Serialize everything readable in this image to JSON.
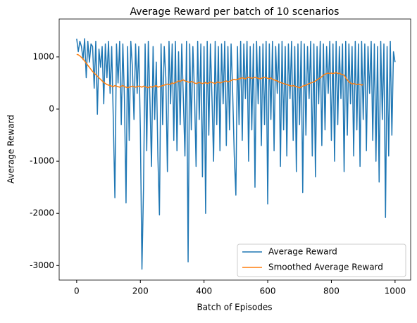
{
  "chart_data": {
    "type": "line",
    "title": "Average Reward per batch of 10 scenarios",
    "x_label": "Batch of Episodes",
    "y_label": "Average Reward",
    "x": [
      0,
      5,
      10,
      15,
      20,
      25,
      30,
      35,
      40,
      45,
      50,
      55,
      60,
      65,
      70,
      75,
      80,
      85,
      90,
      95,
      100,
      105,
      110,
      115,
      120,
      125,
      130,
      135,
      140,
      145,
      150,
      155,
      160,
      165,
      170,
      175,
      180,
      185,
      190,
      195,
      200,
      205,
      210,
      215,
      220,
      225,
      230,
      235,
      240,
      245,
      250,
      255,
      260,
      265,
      270,
      275,
      280,
      285,
      290,
      295,
      300,
      305,
      310,
      315,
      320,
      325,
      330,
      335,
      340,
      345,
      350,
      355,
      360,
      365,
      370,
      375,
      380,
      385,
      390,
      395,
      400,
      405,
      410,
      415,
      420,
      425,
      430,
      435,
      440,
      445,
      450,
      455,
      460,
      465,
      470,
      475,
      480,
      485,
      490,
      495,
      500,
      505,
      510,
      515,
      520,
      525,
      530,
      535,
      540,
      545,
      550,
      555,
      560,
      565,
      570,
      575,
      580,
      585,
      590,
      595,
      600,
      605,
      610,
      615,
      620,
      625,
      630,
      635,
      640,
      645,
      650,
      655,
      660,
      665,
      670,
      675,
      680,
      685,
      690,
      695,
      700,
      705,
      710,
      715,
      720,
      725,
      730,
      735,
      740,
      745,
      750,
      755,
      760,
      765,
      770,
      775,
      780,
      785,
      790,
      795,
      800,
      805,
      810,
      815,
      820,
      825,
      830,
      835,
      840,
      845,
      850,
      855,
      860,
      865,
      870,
      875,
      880,
      885,
      890,
      895,
      900,
      905,
      910,
      915,
      920,
      925,
      930,
      935,
      940,
      945,
      950,
      955,
      960,
      965,
      970,
      975,
      980,
      985,
      990,
      995,
      1000
    ],
    "series": [
      {
        "name": "Average Reward",
        "color": "#1f77b4",
        "values": [
          1350,
          1100,
          1300,
          1200,
          950,
          1350,
          600,
          1300,
          900,
          1250,
          1200,
          400,
          1300,
          -100,
          1150,
          800,
          1200,
          100,
          1250,
          600,
          1300,
          300,
          1200,
          -200,
          -1700,
          1250,
          500,
          1300,
          -300,
          1250,
          200,
          -1800,
          1200,
          -600,
          1300,
          800,
          -200,
          1250,
          300,
          1200,
          -400,
          -3070,
          -1500,
          1250,
          -800,
          1300,
          200,
          -1100,
          1200,
          -200,
          900,
          -900,
          -2030,
          1250,
          -300,
          1200,
          600,
          -1200,
          1300,
          100,
          1250,
          -600,
          1300,
          -800,
          1100,
          -300,
          1250,
          200,
          -900,
          1300,
          -2930,
          1250,
          -400,
          1200,
          300,
          -1100,
          1300,
          -200,
          1250,
          -1300,
          1200,
          -2000,
          1300,
          -500,
          1250,
          200,
          -1000,
          1300,
          -300,
          1200,
          -800,
          1250,
          100,
          1300,
          -700,
          1200,
          -400,
          1250,
          300,
          -900,
          -1650,
          1200,
          -300,
          1300,
          -600,
          1250,
          200,
          1300,
          -1000,
          1200,
          -400,
          1250,
          -1500,
          1300,
          100,
          1200,
          -700,
          1250,
          -300,
          1300,
          -1820,
          1250,
          -200,
          1300,
          -800,
          1200,
          300,
          1250,
          -1100,
          1300,
          -400,
          1200,
          -900,
          1250,
          200,
          1300,
          -600,
          1200,
          -1200,
          1250,
          -300,
          1300,
          -1600,
          1250,
          -500,
          1200,
          200,
          1300,
          -900,
          1250,
          -1300,
          1200,
          100,
          1300,
          -700,
          1250,
          -400,
          1200,
          300,
          1300,
          -600,
          1250,
          -1000,
          1300,
          -300,
          1200,
          200,
          1250,
          -1200,
          1300,
          -500,
          1250,
          100,
          1200,
          -900,
          1300,
          -400,
          1250,
          -1100,
          1300,
          -200,
          1250,
          -800,
          1200,
          300,
          1300,
          -600,
          1250,
          -1000,
          1200,
          -1400,
          1300,
          -200,
          1250,
          -2080,
          1200,
          -900,
          1300,
          -500,
          1100,
          900
        ]
      },
      {
        "name": "Smoothed Average Reward",
        "color": "#ff7f0e",
        "values": [
          1050,
          1040,
          1020,
          990,
          960,
          920,
          880,
          840,
          800,
          760,
          720,
          690,
          660,
          630,
          600,
          570,
          540,
          510,
          490,
          470,
          460,
          450,
          440,
          430,
          450,
          440,
          430,
          420,
          440,
          450,
          430,
          420,
          410,
          420,
          430,
          440,
          430,
          420,
          430,
          440,
          430,
          420,
          440,
          430,
          420,
          410,
          430,
          420,
          430,
          440,
          450,
          420,
          430,
          440,
          450,
          460,
          470,
          480,
          470,
          480,
          500,
          490,
          510,
          520,
          540,
          530,
          550,
          560,
          540,
          530,
          520,
          510,
          530,
          520,
          500,
          490,
          500,
          510,
          500,
          490,
          500,
          510,
          490,
          500,
          520,
          510,
          500,
          490,
          510,
          520,
          500,
          510,
          520,
          530,
          540,
          520,
          530,
          550,
          560,
          570,
          560,
          570,
          580,
          590,
          600,
          590,
          580,
          600,
          610,
          600,
          590,
          600,
          610,
          600,
          590,
          580,
          590,
          600,
          610,
          600,
          590,
          580,
          600,
          570,
          560,
          550,
          540,
          520,
          510,
          500,
          490,
          480,
          470,
          460,
          450,
          440,
          450,
          440,
          430,
          420,
          410,
          420,
          440,
          450,
          460,
          470,
          490,
          500,
          510,
          520,
          540,
          560,
          580,
          600,
          620,
          650,
          670,
          680,
          690,
          680,
          690,
          680,
          690,
          700,
          680,
          690,
          670,
          660,
          650,
          600,
          560,
          520,
          500,
          480,
          490,
          480,
          470,
          480,
          470,
          460,
          470,
          null,
          null,
          null,
          null,
          null,
          null,
          null,
          null,
          null,
          null,
          null,
          null,
          null,
          null,
          null,
          null,
          null,
          null,
          null,
          null
        ]
      }
    ],
    "xlim": [
      -55,
      1049
    ],
    "ylim": [
      -3279,
      1727
    ],
    "xticks": [
      0,
      200,
      400,
      600,
      800,
      1000
    ],
    "yticks": [
      -3000,
      -2000,
      -1000,
      0,
      1000
    ],
    "legend": "lower right"
  }
}
